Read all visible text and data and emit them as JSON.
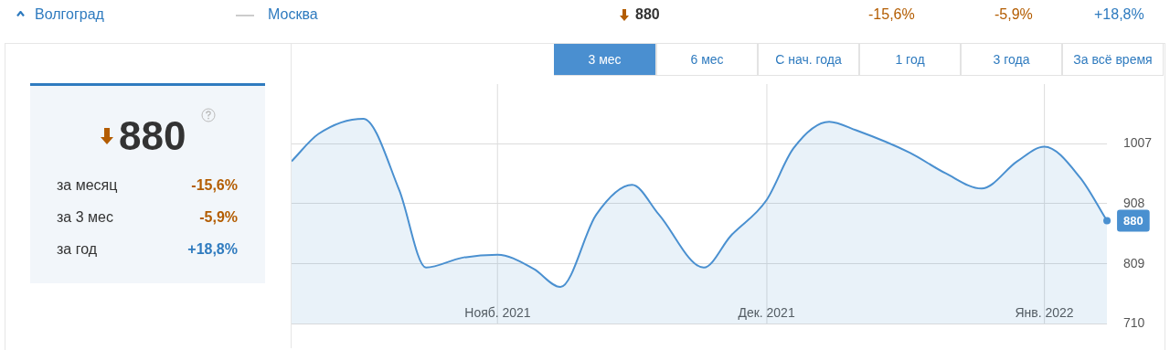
{
  "chart_data": {
    "type": "area",
    "annotations": [
      "Волгоград",
      "Москва",
      "880",
      "-15,6%",
      "-5,9%",
      "+18,8%",
      "3 мес",
      "6 мес",
      "С нач. года",
      "1 год",
      "3 года",
      "За всё время",
      "880",
      "за месяц",
      "-15,6%",
      "за 3 мес",
      "-5,9%",
      "за год",
      "+18,8%"
    ],
    "x": [
      "2021-10-09",
      "2021-10-12",
      "2021-10-17",
      "2021-10-21",
      "2021-10-24",
      "2021-10-28",
      "2021-11-01",
      "2021-11-05",
      "2021-11-08",
      "2021-11-12",
      "2021-11-16",
      "2021-11-19",
      "2021-11-24",
      "2021-11-27",
      "2021-12-01",
      "2021-12-04",
      "2021-12-08",
      "2021-12-11",
      "2021-12-17",
      "2021-12-21",
      "2021-12-25",
      "2021-12-29",
      "2022-01-01",
      "2022-01-05",
      "2022-01-08"
    ],
    "series": [
      {
        "color": "#4a90d0",
        "values": [
          978,
          1023,
          1048,
          931,
          803,
          819,
          824,
          801,
          771,
          890,
          939,
          890,
          803,
          855,
          914,
          999,
          1043,
          1029,
          992,
          958,
          933,
          978,
          1002,
          951,
          880
        ],
        "value_labels": [
          null,
          null,
          null,
          null,
          null,
          null,
          null,
          null,
          null,
          null,
          null,
          null,
          null,
          null,
          null,
          null,
          null,
          null,
          null,
          null,
          null,
          null,
          null,
          null,
          "880"
        ]
      }
    ],
    "xlim": [
      "2021-10-09",
      "2022-01-08"
    ],
    "xticks": [
      {
        "value": "2021-11-01",
        "label": "Нояб. 2021"
      },
      {
        "value": "2021-12-01",
        "label": "Дек. 2021"
      },
      {
        "value": "2022-01-01",
        "label": "Янв. 2022"
      }
    ],
    "ylim": [
      710,
      1105
    ],
    "yticks": [
      710,
      809,
      908,
      1007
    ],
    "grid": true,
    "legend": false,
    "marker": "none",
    "line_style": "solid"
  }
}
